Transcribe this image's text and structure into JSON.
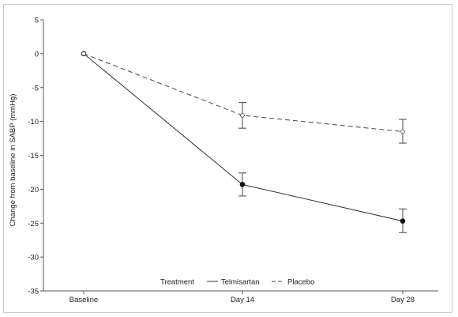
{
  "chart_data": {
    "type": "line",
    "title": "",
    "xlabel": "",
    "ylabel": "Change from baseline in SABP (mmHg)",
    "categories": [
      "Baseline",
      "Day 14",
      "Day 28"
    ],
    "ylim": [
      -35,
      5
    ],
    "yticks": [
      5,
      0,
      -5,
      -10,
      -15,
      -20,
      -25,
      -30,
      -35
    ],
    "grid": false,
    "legend": {
      "title": "Treatment",
      "placement": "bottom-center"
    },
    "series": [
      {
        "name": "Telmisartan",
        "line_style": "solid",
        "marker": "filled-circle",
        "color": "#333333",
        "values": [
          0,
          -19.3,
          -24.7
        ],
        "error_low": [
          null,
          -21.0,
          -26.4
        ],
        "error_high": [
          null,
          -17.6,
          -22.9
        ]
      },
      {
        "name": "Placebo",
        "line_style": "dashed",
        "marker": "open-circle",
        "color": "#444444",
        "values": [
          0,
          -9.1,
          -11.5
        ],
        "error_low": [
          null,
          -11.0,
          -13.2
        ],
        "error_high": [
          null,
          -7.2,
          -9.7
        ]
      }
    ]
  }
}
